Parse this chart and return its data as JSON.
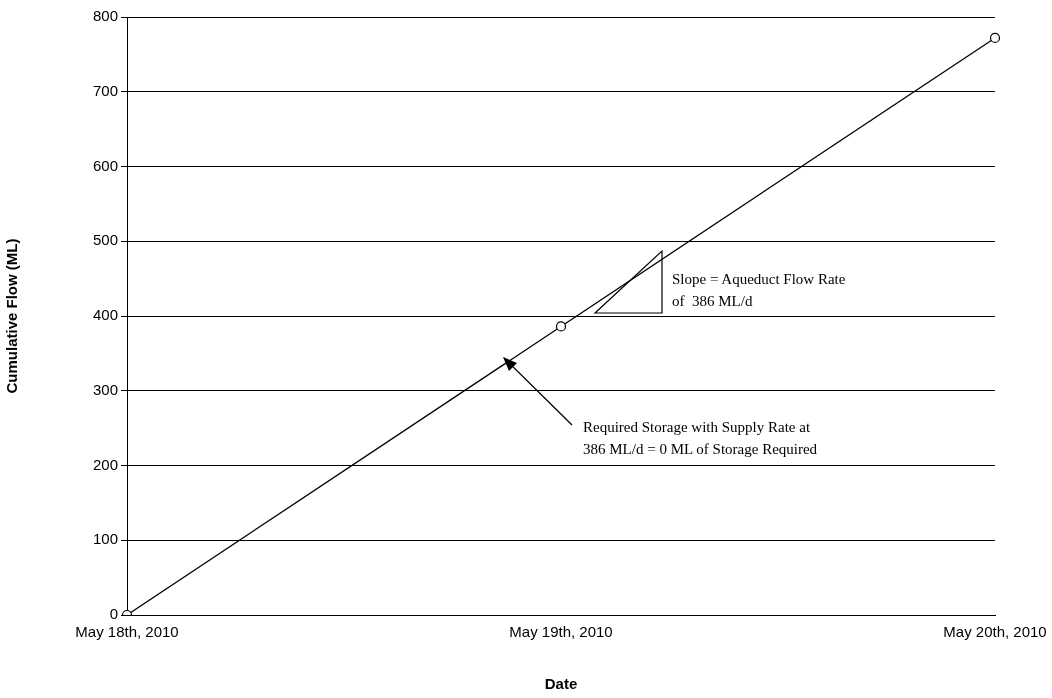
{
  "chart_data": {
    "type": "line",
    "xlabel": "Date",
    "ylabel": "Cumulative Flow (ML)",
    "categories": [
      "May 18th, 2010",
      "May 19th, 2010",
      "May 20th, 2010"
    ],
    "values": [
      0,
      386,
      772
    ],
    "color": "#000000",
    "marker": "circle",
    "line_style": "solid",
    "ylim": [
      0,
      800
    ],
    "yticks": [
      0,
      100,
      200,
      300,
      400,
      500,
      600,
      700,
      800
    ],
    "grid": "y",
    "legend": false,
    "annotations": [
      "Slope = Aqueduct Flow Rate\nof  386 ML/d",
      "Required Storage with Supply Rate at\n386 ML/d = 0 ML of Storage Required"
    ]
  }
}
